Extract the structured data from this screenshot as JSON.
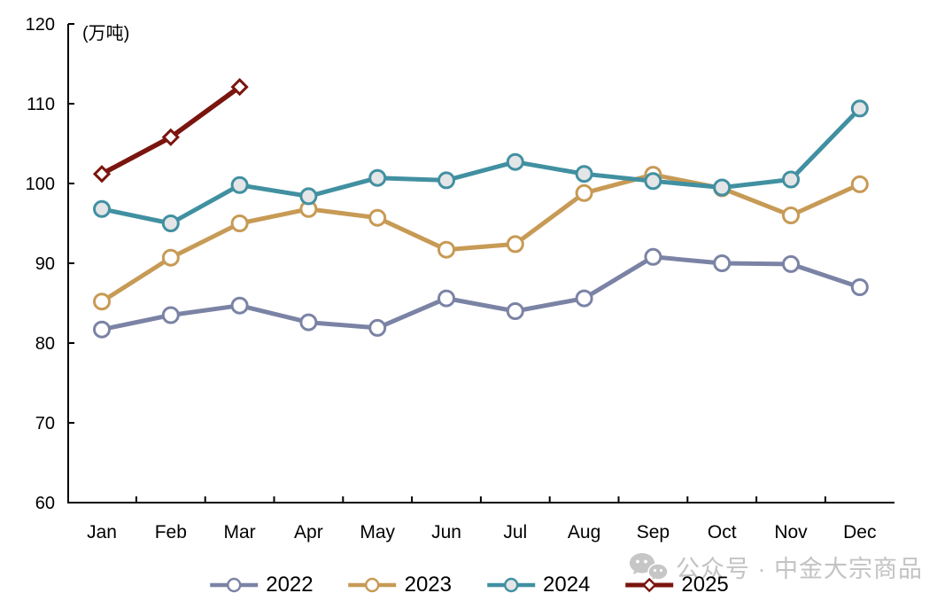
{
  "chart_data": {
    "type": "line",
    "title": "",
    "unit_label": "(万吨)",
    "xlabel": "",
    "ylabel": "万吨",
    "categories": [
      "Jan",
      "Feb",
      "Mar",
      "Apr",
      "May",
      "Jun",
      "Jul",
      "Aug",
      "Sep",
      "Oct",
      "Nov",
      "Dec"
    ],
    "ylim": [
      60,
      120
    ],
    "yticks": [
      60,
      70,
      80,
      90,
      100,
      110,
      120
    ],
    "grid": false,
    "legend_position": "bottom",
    "series": [
      {
        "name": "2022",
        "color": "#7b83a5",
        "marker": "circle",
        "marker_fill": "#ffffff",
        "values": [
          81.7,
          83.5,
          84.7,
          82.6,
          81.9,
          85.6,
          84.0,
          85.6,
          90.8,
          90.0,
          89.9,
          87.0
        ]
      },
      {
        "name": "2023",
        "color": "#c79a55",
        "marker": "circle",
        "marker_fill": "#ffffff",
        "values": [
          85.2,
          90.7,
          95.0,
          96.8,
          95.7,
          91.7,
          92.4,
          98.8,
          101.1,
          99.4,
          96.0,
          99.9
        ]
      },
      {
        "name": "2024",
        "color": "#4190a1",
        "marker": "circle",
        "marker_fill": "#e4e5e7",
        "values": [
          96.8,
          95.0,
          99.8,
          98.4,
          100.7,
          100.4,
          102.7,
          101.2,
          100.3,
          99.5,
          100.5,
          109.4
        ]
      },
      {
        "name": "2025",
        "color": "#7a150f",
        "marker": "diamond",
        "marker_fill": "#ffffff",
        "values": [
          101.2,
          105.8,
          112.1
        ]
      }
    ]
  },
  "watermark": {
    "text": "公众号 · 中金大宗商品",
    "icon": "wechat-chat-bubbles-icon"
  }
}
